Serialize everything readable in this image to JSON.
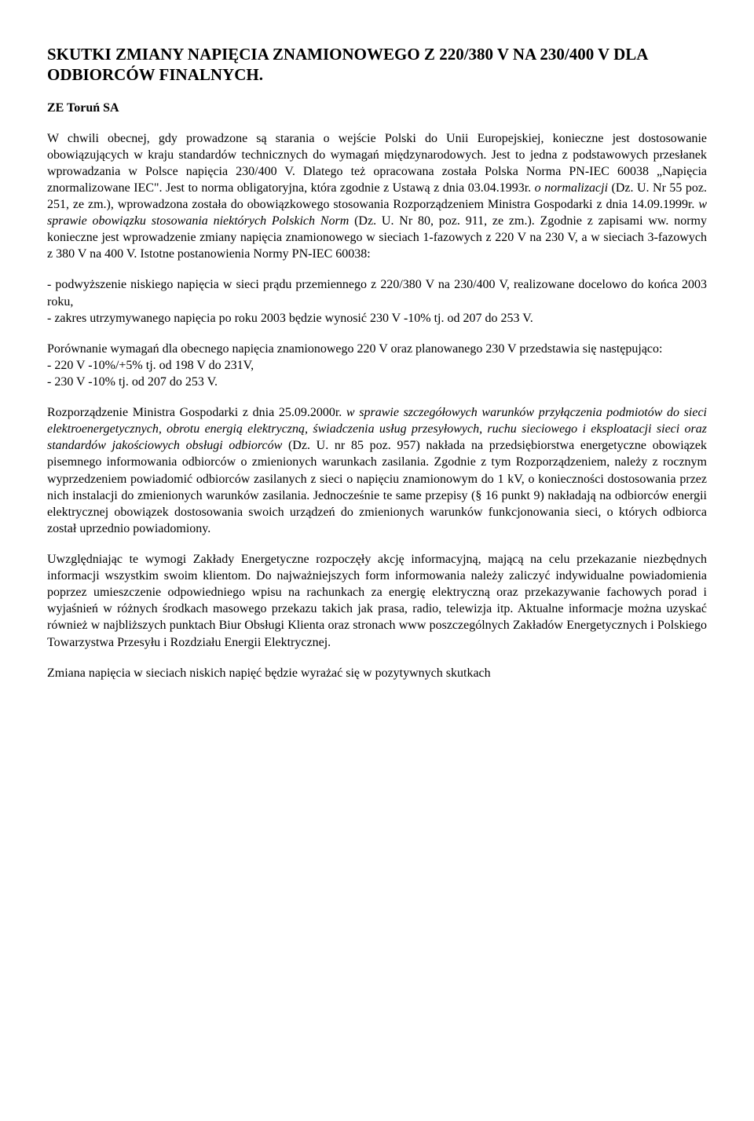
{
  "title": "SKUTKI ZMIANY NAPIĘCIA ZNAMIONOWEGO Z 220/380 V NA 230/400 V DLA ODBIORCÓW FINALNYCH.",
  "subheading": "ZE Toruń SA",
  "p1_a": "W chwili obecnej, gdy prowadzone są starania o wejście Polski do Unii Europejskiej, konieczne jest dostosowanie obowiązujących w kraju standardów technicznych do wymagań międzynarodowych. Jest to jedna z podstawowych przesłanek wprowadzania w Polsce napięcia 230/400 V. Dlatego też opracowana została Polska Norma PN-IEC 60038 „Napięcia znormalizowane IEC\". Jest to norma obligatoryjna, która zgodnie z Ustawą z dnia 03.04.1993r. ",
  "p1_i1": "o normalizacji",
  "p1_b": " (Dz. U. Nr 55 poz. 251, ze zm.), wprowadzona została do obowiązkowego stosowania Rozporządzeniem Ministra Gospodarki z dnia 14.09.1999r. ",
  "p1_i2": "w sprawie obowiązku stosowania niektórych Polskich Norm",
  "p1_c": " (Dz. U. Nr 80, poz. 911, ze zm.). Zgodnie z zapisami ww. normy konieczne jest wprowadzenie zmiany napięcia znamionowego w sieciach 1-fazowych z 220 V na 230 V, a w sieciach 3-fazowych z 380 V na 400 V. Istotne postanowienia Normy PN-IEC 60038:",
  "bullets1": {
    "b1": "- podwyższenie niskiego napięcia w sieci prądu przemiennego z 220/380 V na 230/400 V, realizowane docelowo do końca 2003 roku,",
    "b2": "- zakres utrzymywanego napięcia po roku 2003 będzie wynosić 230 V -10% tj. od 207 do 253 V."
  },
  "p2": "Porównanie wymagań dla obecnego napięcia znamionowego 220 V oraz planowanego 230 V przedstawia się następująco:",
  "bullets2": {
    "b1": "- 220 V -10%/+5% tj. od 198 V do 231V,",
    "b2": "- 230 V -10% tj. od 207 do 253 V."
  },
  "p3_a": "Rozporządzenie Ministra Gospodarki z dnia 25.09.2000r. ",
  "p3_i": "w sprawie szczegółowych warunków przyłączenia podmiotów do sieci elektroenergetycznych, obrotu energią elektryczną, świadczenia usług przesyłowych, ruchu sieciowego i eksploatacji sieci oraz standardów jakościowych obsługi odbiorców",
  "p3_b": " (Dz. U. nr 85 poz. 957) nakłada na przedsiębiorstwa energetyczne obowiązek pisemnego informowania odbiorców o zmienionych warunkach zasilania. Zgodnie z tym Rozporządzeniem, należy z rocznym wyprzedzeniem powiadomić odbiorców zasilanych z sieci o napięciu znamionowym do 1 kV, o konieczności dostosowania przez nich instalacji do zmienionych warunków zasilania. Jednocześnie te same przepisy (§ 16 punkt 9) nakładają na odbiorców energii elektrycznej obowiązek dostosowania swoich urządzeń do zmienionych warunków funkcjonowania sieci, o których odbiorca został uprzednio powiadomiony.",
  "p4": "Uwzględniając te wymogi Zakłady Energetyczne rozpoczęły akcję informacyjną, mającą na celu przekazanie niezbędnych informacji wszystkim swoim klientom. Do najważniejszych form informowania należy zaliczyć indywidualne powiadomienia poprzez umieszczenie odpowiedniego wpisu na rachunkach za energię elektryczną oraz przekazywanie fachowych porad i wyjaśnień w różnych środkach masowego przekazu takich jak prasa, radio, telewizja itp. Aktualne informacje można uzyskać również w najbliższych punktach Biur Obsługi Klienta oraz stronach www poszczególnych Zakładów Energetycznych i Polskiego Towarzystwa Przesyłu i Rozdziału Energii Elektrycznej.",
  "p5": "Zmiana napięcia w sieciach niskich napięć będzie wyrażać się w pozytywnych skutkach"
}
